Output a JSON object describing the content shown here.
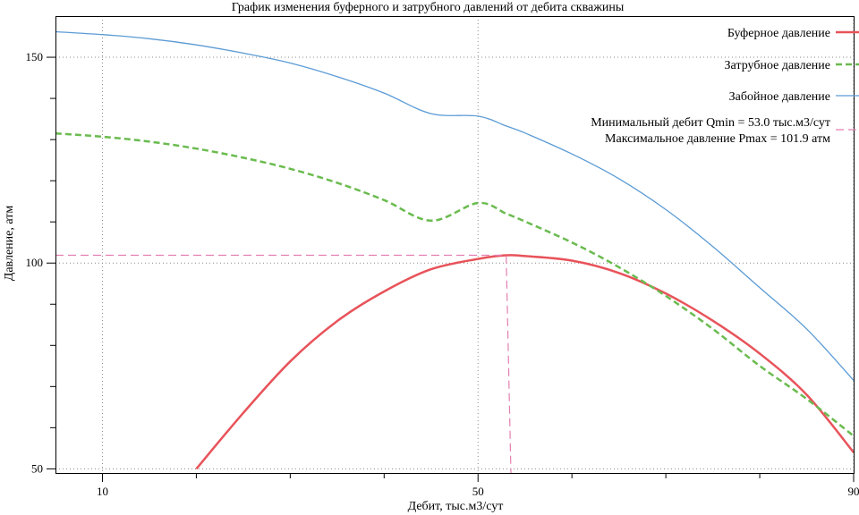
{
  "chart_data": {
    "type": "line",
    "title": "График изменения буферного и затрубного давлений от дебита скважины",
    "xlabel": "Дебит, тыс.м3/сут",
    "ylabel": "Давление, атм",
    "xlim": [
      5,
      90
    ],
    "ylim": [
      49,
      160
    ],
    "x_ticks": [
      10,
      50,
      90
    ],
    "x_tick_labels": [
      "10",
      "50",
      "90"
    ],
    "x_minor_ticks": [
      20,
      30,
      40,
      60,
      70,
      80
    ],
    "y_ticks": [
      50,
      100,
      150
    ],
    "y_tick_labels": [
      "50",
      "100",
      "150"
    ],
    "y_minor_ticks": [
      60,
      70,
      80,
      90,
      110,
      120,
      130,
      140
    ],
    "grid": true,
    "legend_position": "top-right",
    "x": [
      5,
      10,
      15,
      20,
      25,
      30,
      35,
      40,
      45,
      50,
      53,
      55,
      60,
      65,
      70,
      75,
      80,
      85,
      90
    ],
    "series": [
      {
        "name": "Буферное давление",
        "color": "#e8535a",
        "style": "solid",
        "width": 2.5,
        "values": [
          null,
          null,
          null,
          50.0,
          63.6,
          76.1,
          85.9,
          93.1,
          98.5,
          101.0,
          101.9,
          101.7,
          100.6,
          97.6,
          92.6,
          86.0,
          78.0,
          68.0,
          54.0
        ]
      },
      {
        "name": "Затрубное давление",
        "color": "#6abb4f",
        "style": "dashed",
        "width": 2.5,
        "values": [
          131.5,
          130.7,
          129.5,
          127.8,
          125.6,
          122.9,
          119.5,
          115.3,
          110.3,
          114.6,
          112.0,
          110.1,
          105.0,
          99.0,
          92.0,
          84.0,
          75.0,
          67.0,
          58.0
        ]
      },
      {
        "name": "Забойное давление",
        "color": "#5b9bd5",
        "style": "solid",
        "width": 1.3,
        "values": [
          156.2,
          155.5,
          154.5,
          153.0,
          151.0,
          148.6,
          145.3,
          141.3,
          136.3,
          135.7,
          133.3,
          131.6,
          126.5,
          120.5,
          113.0,
          104.0,
          94.0,
          84.0,
          71.5
        ]
      },
      {
        "name": "Минимальный дебит Qmin =  53.0 тыс.м3/сут\nМаксимальное давление Pmax =  101.9 атм",
        "legend_lines": [
          "Минимальный дебит Qmin =  53.0 тыс.м3/сут",
          "Максимальное давление Pmax =  101.9 атм"
        ],
        "color": "#e37fb0",
        "style": "dashed",
        "width": 1.2,
        "points": [
          [
            5,
            101.9
          ],
          [
            53.0,
            101.9
          ],
          [
            53.5,
            49
          ]
        ]
      }
    ]
  }
}
